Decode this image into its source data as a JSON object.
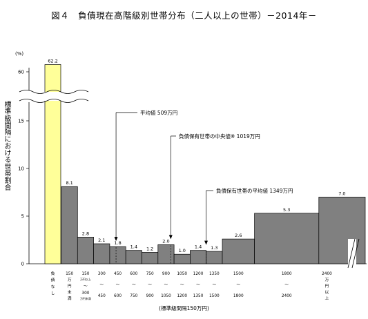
{
  "chart_data": {
    "type": "bar",
    "title": "図４　負債現在高階級別世帯分布（二人以上の世帯）－2014年－",
    "ylabel": "標準級間隔における世帯割合",
    "xlabel": "(標準級間隔150万円)",
    "yunit": "(%)",
    "yticks": [
      0,
      5,
      10,
      15,
      60
    ],
    "axis_break": true,
    "categories": [
      {
        "label": "負債なし",
        "lower": null,
        "upper": null,
        "value": 62.2,
        "highlight": true
      },
      {
        "label": "150万円未満",
        "lower": 0,
        "upper": 150,
        "value": 8.1
      },
      {
        "label": "150万円以上 ～ 300万円未満",
        "lower": 150,
        "upper": 300,
        "value": 2.8
      },
      {
        "label": "300～450",
        "lower": 300,
        "upper": 450,
        "value": 2.1
      },
      {
        "label": "450～600",
        "lower": 450,
        "upper": 600,
        "value": 1.8
      },
      {
        "label": "600～750",
        "lower": 600,
        "upper": 750,
        "value": 1.4
      },
      {
        "label": "750～900",
        "lower": 750,
        "upper": 900,
        "value": 1.2
      },
      {
        "label": "900～1050",
        "lower": 900,
        "upper": 1050,
        "value": 2.0
      },
      {
        "label": "1050～1200",
        "lower": 1050,
        "upper": 1200,
        "value": 1.0
      },
      {
        "label": "1200～1350",
        "lower": 1200,
        "upper": 1350,
        "value": 1.4
      },
      {
        "label": "1350～1500",
        "lower": 1350,
        "upper": 1500,
        "value": 1.3
      },
      {
        "label": "1500～1800",
        "lower": 1500,
        "upper": 1800,
        "value": 2.6
      },
      {
        "label": "1800～2400",
        "lower": 1800,
        "upper": 2400,
        "value": 5.3
      },
      {
        "label": "2400万円以上",
        "lower": 2400,
        "upper": null,
        "value": 7.0
      }
    ],
    "annotations": [
      {
        "text": "平均値 509万円",
        "at": 509
      },
      {
        "text": "負債保有世帯の中央値※ 1019万円",
        "at": 1019
      },
      {
        "text": "負債保有世帯の平均値 1349万円",
        "at": 1349
      }
    ]
  },
  "x_tick_texts": {
    "none": [
      "負",
      "債",
      "な",
      "し"
    ],
    "under150": [
      "150",
      "万",
      "円",
      "未",
      "満"
    ],
    "c150_top": "150",
    "c150_small1": "万円以上",
    "c150_small2": "万円未満",
    "tilde": "～",
    "over2400": [
      "2400",
      "万",
      "円",
      "以",
      "上"
    ]
  }
}
